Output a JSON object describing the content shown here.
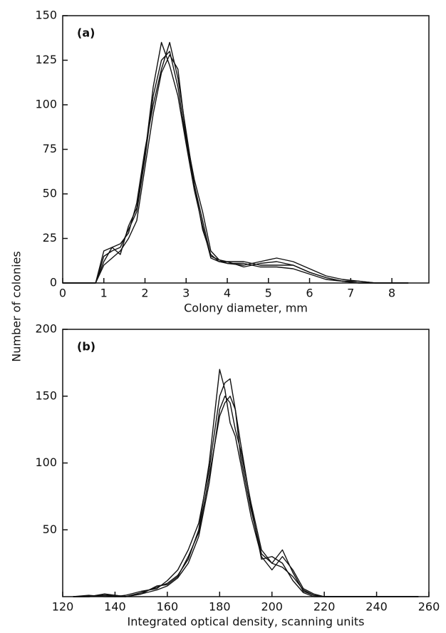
{
  "chart_data": [
    {
      "type": "line",
      "panel_label": "(a)",
      "ylabel": "Number of colonies",
      "xlabel": "Colony diameter, mm",
      "xlim": [
        0,
        8.9
      ],
      "ylim": [
        0,
        150
      ],
      "xticks": [
        0,
        1,
        2,
        3,
        4,
        5,
        6,
        7,
        8
      ],
      "yticks": [
        0,
        25,
        50,
        75,
        100,
        125,
        150
      ],
      "x": [
        0,
        0.8,
        1.0,
        1.2,
        1.4,
        1.6,
        1.8,
        2.0,
        2.2,
        2.4,
        2.6,
        2.8,
        3.0,
        3.2,
        3.4,
        3.6,
        3.8,
        4.0,
        4.4,
        4.8,
        5.2,
        5.6,
        6.0,
        6.4,
        6.8,
        7.2,
        7.6,
        8.0,
        8.4
      ],
      "series": [
        {
          "color": "#111111",
          "values": [
            0,
            0,
            15,
            18,
            20,
            30,
            40,
            70,
            105,
            125,
            130,
            110,
            80,
            55,
            35,
            15,
            13,
            12,
            12,
            10,
            10,
            10,
            6,
            3,
            1,
            0,
            0,
            0,
            0
          ]
        },
        {
          "color": "#111111",
          "values": [
            0,
            0,
            12,
            20,
            22,
            28,
            45,
            75,
            100,
            120,
            135,
            115,
            85,
            55,
            30,
            16,
            12,
            11,
            10,
            12,
            14,
            12,
            8,
            4,
            2,
            1,
            0,
            0,
            0
          ]
        },
        {
          "color": "#111111",
          "values": [
            0,
            0,
            10,
            14,
            18,
            25,
            35,
            65,
            95,
            118,
            128,
            120,
            82,
            58,
            40,
            18,
            13,
            11,
            11,
            9,
            9,
            8,
            5,
            2,
            1,
            0,
            0,
            0,
            0
          ]
        },
        {
          "color": "#111111",
          "values": [
            0,
            0,
            18,
            20,
            16,
            32,
            42,
            72,
            110,
            135,
            122,
            105,
            78,
            52,
            32,
            14,
            12,
            12,
            9,
            11,
            12,
            10,
            6,
            3,
            1,
            1,
            0,
            0,
            0
          ]
        }
      ]
    },
    {
      "type": "line",
      "panel_label": "(b)",
      "xlabel": "Integrated optical density, scanning units",
      "xlim": [
        120,
        260
      ],
      "ylim": [
        0,
        200
      ],
      "xticks": [
        120,
        140,
        160,
        180,
        200,
        220,
        240,
        260
      ],
      "yticks": [
        50,
        100,
        150,
        200
      ],
      "x": [
        124,
        130,
        136,
        140,
        144,
        150,
        156,
        160,
        164,
        168,
        172,
        176,
        180,
        182,
        184,
        186,
        188,
        192,
        196,
        200,
        204,
        208,
        212,
        216,
        220,
        230,
        240,
        256
      ],
      "series": [
        {
          "color": "#111111",
          "values": [
            0,
            0,
            1,
            0,
            0,
            2,
            5,
            8,
            14,
            25,
            45,
            85,
            140,
            150,
            145,
            125,
            110,
            70,
            35,
            25,
            22,
            15,
            5,
            1,
            0,
            0,
            0,
            0
          ]
        },
        {
          "color": "#111111",
          "values": [
            0,
            0,
            2,
            1,
            0,
            3,
            7,
            10,
            16,
            28,
            50,
            100,
            170,
            155,
            130,
            120,
            100,
            60,
            30,
            20,
            30,
            20,
            6,
            2,
            0,
            0,
            0,
            0
          ]
        },
        {
          "color": "#111111",
          "values": [
            0,
            1,
            0,
            0,
            1,
            4,
            6,
            12,
            20,
            35,
            55,
            95,
            150,
            160,
            163,
            140,
            105,
            65,
            32,
            25,
            35,
            18,
            4,
            1,
            0,
            0,
            0,
            0
          ]
        },
        {
          "color": "#111111",
          "values": [
            0,
            0,
            1,
            1,
            0,
            2,
            8,
            9,
            15,
            30,
            48,
            90,
            135,
            145,
            150,
            140,
            115,
            68,
            28,
            30,
            25,
            12,
            3,
            0,
            0,
            0,
            0,
            0
          ]
        }
      ]
    }
  ]
}
